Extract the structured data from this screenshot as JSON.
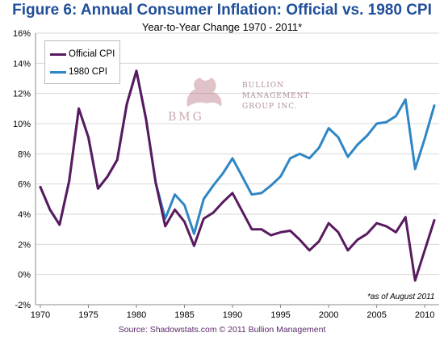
{
  "title": "Figure 6: Annual Consumer Inflation: Official vs. 1980 CPI",
  "subtitle": "Year-to-Year Change 1970 - 2011*",
  "source": "Source: Shadowstats.com © 2011 Bullion Management",
  "footnote": "*as of August 2011",
  "watermark": {
    "line1": "BULLION",
    "line2": "MANAGEMENT",
    "line3": "GROUP INC.",
    "mark": "BMG"
  },
  "colors": {
    "official": "#5a1a5e",
    "cpi1980": "#2f86c4",
    "grid": "#d9d9d9",
    "axis": "#888888"
  },
  "chart_data": {
    "type": "line",
    "x": [
      1970,
      1971,
      1972,
      1973,
      1974,
      1975,
      1976,
      1977,
      1978,
      1979,
      1980,
      1981,
      1982,
      1983,
      1984,
      1985,
      1986,
      1987,
      1988,
      1989,
      1990,
      1991,
      1992,
      1993,
      1994,
      1995,
      1996,
      1997,
      1998,
      1999,
      2000,
      2001,
      2002,
      2003,
      2004,
      2005,
      2006,
      2007,
      2008,
      2009,
      2010,
      2011
    ],
    "series": [
      {
        "name": "Official CPI",
        "values": [
          5.8,
          4.3,
          3.3,
          6.2,
          11.0,
          9.1,
          5.7,
          6.5,
          7.6,
          11.3,
          13.5,
          10.3,
          6.1,
          3.2,
          4.3,
          3.5,
          1.9,
          3.7,
          4.1,
          4.8,
          5.4,
          4.2,
          3.0,
          3.0,
          2.6,
          2.8,
          2.9,
          2.3,
          1.6,
          2.2,
          3.4,
          2.8,
          1.6,
          2.3,
          2.7,
          3.4,
          3.2,
          2.8,
          3.8,
          -0.4,
          1.6,
          3.6
        ]
      },
      {
        "name": "1980 CPI",
        "values": [
          5.8,
          4.3,
          3.3,
          6.2,
          11.0,
          9.1,
          5.7,
          6.5,
          7.6,
          11.3,
          13.5,
          10.3,
          6.1,
          3.7,
          5.3,
          4.6,
          2.7,
          5.0,
          5.9,
          6.7,
          7.7,
          6.5,
          5.3,
          5.4,
          5.9,
          6.5,
          7.7,
          8.0,
          7.7,
          8.4,
          9.7,
          9.1,
          7.8,
          8.6,
          9.2,
          10.0,
          10.1,
          10.5,
          11.6,
          7.0,
          9.0,
          11.2
        ]
      }
    ],
    "xticks": [
      1970,
      1975,
      1980,
      1985,
      1990,
      1995,
      2000,
      2005,
      2010
    ],
    "yticks": [
      "-2%",
      "0%",
      "2%",
      "4%",
      "6%",
      "8%",
      "10%",
      "12%",
      "14%",
      "16%"
    ],
    "ylim": [
      -2,
      16
    ],
    "xlim": [
      1969.5,
      2011.5
    ],
    "grid": true,
    "legend_position": "top-left"
  }
}
